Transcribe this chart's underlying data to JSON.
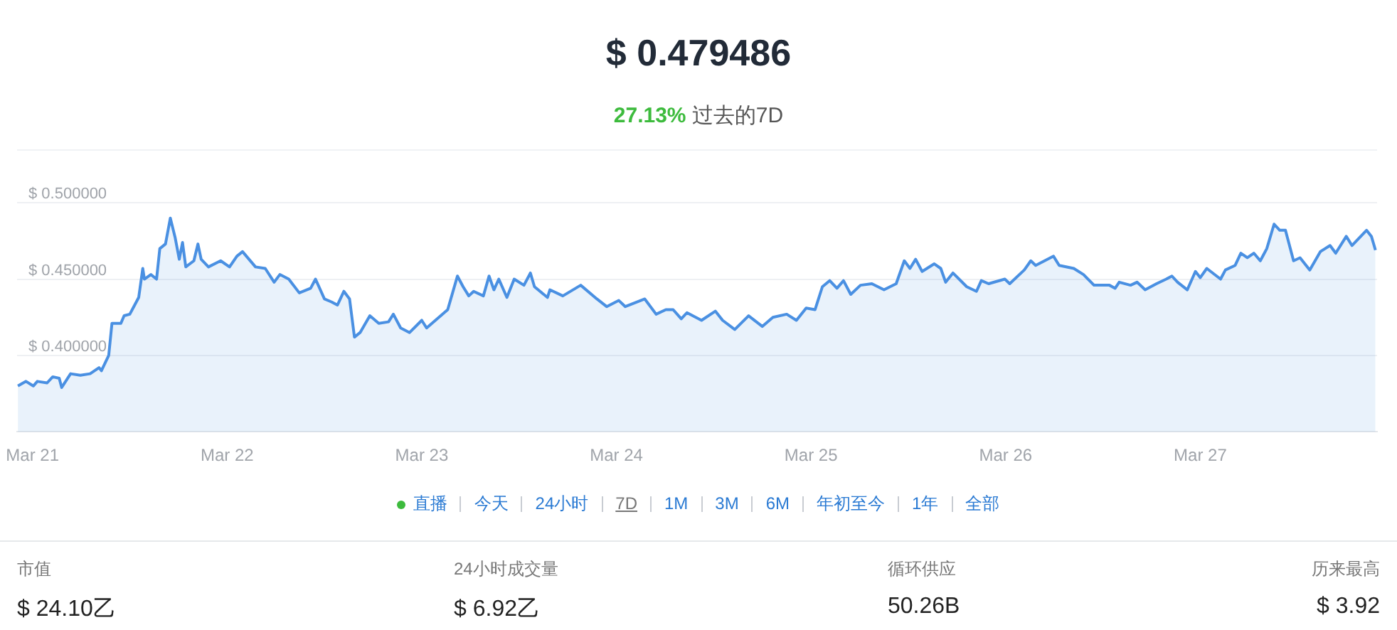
{
  "chart_data": {
    "type": "area",
    "title": "$ 0.479486",
    "subtitle": "27.13% 过去的7D",
    "x": [
      "--03-20T22:12",
      "--03-20T23:12",
      "--03-21T00:06",
      "--03-21T00:36",
      "--03-21T01:48",
      "--03-21T02:30",
      "--03-21T03:18",
      "--03-21T03:36",
      "--03-21T04:42",
      "--03-21T05:54",
      "--03-21T07:06",
      "--03-21T08:12",
      "--03-21T08:30",
      "--03-21T09:24",
      "--03-21T09:48",
      "--03-21T10:54",
      "--03-21T11:18",
      "--03-21T12:00",
      "--03-21T12:36",
      "--03-21T13:06",
      "--03-21T13:36",
      "--03-21T13:48",
      "--03-21T14:36",
      "--03-21T15:18",
      "--03-21T15:42",
      "--03-21T16:24",
      "--03-21T17:00",
      "--03-21T17:36",
      "--03-21T18:06",
      "--03-21T18:30",
      "--03-21T18:54",
      "--03-21T19:54",
      "--03-21T20:24",
      "--03-21T20:48",
      "--03-21T21:42",
      "--03-21T23:12",
      "--03-22T00:18",
      "--03-22T01:12",
      "--03-22T01:54",
      "--03-22T03:30",
      "--03-22T04:42",
      "--03-22T05:48",
      "--03-22T06:30",
      "--03-22T07:36",
      "--03-22T08:54",
      "--03-22T10:18",
      "--03-22T10:54",
      "--03-22T12:00",
      "--03-22T12:54",
      "--03-22T13:36",
      "--03-22T14:24",
      "--03-22T15:06",
      "--03-22T15:42",
      "--03-22T16:24",
      "--03-22T17:36",
      "--03-22T18:42",
      "--03-22T19:54",
      "--03-22T20:30",
      "--03-22T21:24",
      "--03-22T22:30",
      "--03-23T00:00",
      "--03-23T00:36",
      "--03-23T03:12",
      "--03-23T03:48",
      "--03-23T04:24",
      "--03-23T05:06",
      "--03-23T05:48",
      "--03-23T06:24",
      "--03-23T07:36",
      "--03-23T08:18",
      "--03-23T08:54",
      "--03-23T09:30",
      "--03-23T10:30",
      "--03-23T11:24",
      "--03-23T12:36",
      "--03-23T13:24",
      "--03-23T13:54",
      "--03-23T15:30",
      "--03-23T15:48",
      "--03-23T17:24",
      "--03-23T19:36",
      "--03-23T21:36",
      "--03-23T22:48",
      "--03-24T00:18",
      "--03-24T01:06",
      "--03-24T03:30",
      "--03-24T04:54",
      "--03-24T06:06",
      "--03-24T07:00",
      "--03-24T08:00",
      "--03-24T08:42",
      "--03-24T10:30",
      "--03-24T12:12",
      "--03-24T13:06",
      "--03-24T14:36",
      "--03-24T16:18",
      "--03-24T18:00",
      "--03-24T19:18",
      "--03-24T21:00",
      "--03-24T22:12",
      "--03-24T23:24",
      "--03-25T00:30",
      "--03-25T01:24",
      "--03-25T02:18",
      "--03-25T03:12",
      "--03-25T04:00",
      "--03-25T04:54",
      "--03-25T06:06",
      "--03-25T07:30",
      "--03-25T09:00",
      "--03-25T10:30",
      "--03-25T11:30",
      "--03-25T12:12",
      "--03-25T12:54",
      "--03-25T13:42",
      "--03-25T15:12",
      "--03-25T16:00",
      "--03-25T16:36",
      "--03-25T17:30",
      "--03-25T19:12",
      "--03-25T20:24",
      "--03-25T21:00",
      "--03-25T21:54",
      "--03-25T23:54",
      "--03-26T00:30",
      "--03-26T02:18",
      "--03-26T03:06",
      "--03-26T03:42",
      "--03-26T05:54",
      "--03-26T06:36",
      "--03-26T08:24",
      "--03-26T09:36",
      "--03-26T10:54",
      "--03-26T12:48",
      "--03-26T13:30",
      "--03-26T14:00",
      "--03-26T15:24",
      "--03-26T16:12",
      "--03-26T17:12",
      "--03-26T18:36",
      "--03-26T19:48",
      "--03-26T20:30",
      "--03-26T21:12",
      "--03-26T22:24",
      "--03-26T23:24",
      "--03-27T00:00",
      "--03-27T00:48",
      "--03-27T02:30",
      "--03-27T03:06",
      "--03-27T04:18",
      "--03-27T05:00",
      "--03-27T05:48",
      "--03-27T06:36",
      "--03-27T07:24",
      "--03-27T08:12",
      "--03-27T09:06",
      "--03-27T09:48",
      "--03-27T10:30",
      "--03-27T11:30",
      "--03-27T12:18",
      "--03-27T13:30",
      "--03-27T14:48",
      "--03-27T16:00",
      "--03-27T16:42",
      "--03-27T18:00",
      "--03-27T18:42",
      "--03-27T20:30",
      "--03-27T21:06",
      "--03-27T21:36"
    ],
    "series": [
      {
        "color": "#4a90e2",
        "values": [
          0.38,
          0.383,
          0.38,
          0.383,
          0.382,
          0.386,
          0.385,
          0.379,
          0.388,
          0.387,
          0.388,
          0.392,
          0.39,
          0.4,
          0.421,
          0.421,
          0.426,
          0.427,
          0.433,
          0.438,
          0.457,
          0.45,
          0.453,
          0.45,
          0.47,
          0.473,
          0.49,
          0.477,
          0.463,
          0.474,
          0.458,
          0.462,
          0.473,
          0.463,
          0.458,
          0.462,
          0.458,
          0.465,
          0.468,
          0.458,
          0.457,
          0.448,
          0.453,
          0.45,
          0.441,
          0.444,
          0.45,
          0.437,
          0.435,
          0.433,
          0.442,
          0.437,
          0.412,
          0.415,
          0.426,
          0.421,
          0.422,
          0.427,
          0.418,
          0.415,
          0.423,
          0.418,
          0.43,
          0.441,
          0.452,
          0.445,
          0.439,
          0.442,
          0.439,
          0.452,
          0.443,
          0.45,
          0.438,
          0.45,
          0.446,
          0.454,
          0.445,
          0.438,
          0.443,
          0.439,
          0.446,
          0.437,
          0.432,
          0.436,
          0.432,
          0.437,
          0.427,
          0.43,
          0.43,
          0.424,
          0.428,
          0.423,
          0.429,
          0.423,
          0.417,
          0.426,
          0.419,
          0.425,
          0.427,
          0.423,
          0.431,
          0.43,
          0.445,
          0.449,
          0.444,
          0.449,
          0.44,
          0.446,
          0.447,
          0.443,
          0.447,
          0.462,
          0.457,
          0.463,
          0.455,
          0.46,
          0.457,
          0.448,
          0.454,
          0.445,
          0.442,
          0.449,
          0.447,
          0.45,
          0.447,
          0.456,
          0.462,
          0.459,
          0.465,
          0.459,
          0.457,
          0.453,
          0.446,
          0.446,
          0.444,
          0.448,
          0.446,
          0.448,
          0.443,
          0.447,
          0.45,
          0.452,
          0.448,
          0.443,
          0.455,
          0.451,
          0.457,
          0.45,
          0.456,
          0.459,
          0.467,
          0.464,
          0.467,
          0.462,
          0.47,
          0.486,
          0.482,
          0.482,
          0.462,
          0.464,
          0.456,
          0.468,
          0.472,
          0.467,
          0.478,
          0.472,
          0.482,
          0.478,
          0.469
        ]
      }
    ],
    "xlim": [
      "--03-20T22:06",
      "--03-27T21:48"
    ],
    "xticks": [
      {
        "value": "--03-21",
        "label": "Mar 21"
      },
      {
        "value": "--03-22",
        "label": "Mar 22"
      },
      {
        "value": "--03-23",
        "label": "Mar 23"
      },
      {
        "value": "--03-24",
        "label": "Mar 24"
      },
      {
        "value": "--03-25",
        "label": "Mar 25"
      },
      {
        "value": "--03-26",
        "label": "Mar 26"
      },
      {
        "value": "--03-27",
        "label": "Mar 27"
      }
    ],
    "ylim": [
      0.35,
      0.5
    ],
    "yticks": [
      {
        "value": 0.4,
        "label": "$ 0.400000"
      },
      {
        "value": 0.45,
        "label": "$ 0.450000"
      },
      {
        "value": 0.5,
        "label": "$ 0.500000"
      }
    ],
    "grid": "y",
    "legend": false,
    "marker": "none",
    "line_style": "solid",
    "annotations": [
      "直播",
      "今天",
      "24小时",
      "7D",
      "1M",
      "3M",
      "6M",
      "年初至今",
      "1年",
      "全部",
      "市值",
      "$ 24.10乙",
      "24小时成交量",
      "$ 6.92乙",
      "循环供应",
      "50.26B",
      "历来最高",
      "$ 3.92"
    ]
  }
}
